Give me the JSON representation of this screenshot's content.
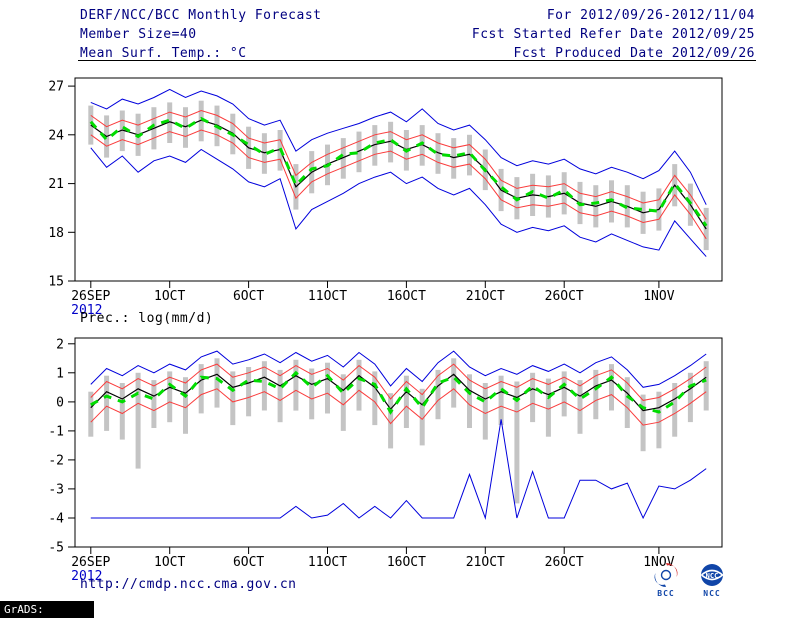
{
  "header": {
    "left_lines": [
      "DERF/NCC/BCC Monthly Forecast",
      "Member Size=40",
      "Mean Surf. Temp.: °C"
    ],
    "right_lines": [
      "For 2012/09/26-2012/11/04",
      "Fcst Started Refer Date 2012/09/25",
      "Fcst Produced Date 2012/09/26"
    ]
  },
  "footer": {
    "url": "http://cmdp.ncc.cma.gov.cn",
    "grads_credit": "GrADS: COLA/IGES",
    "logos": [
      {
        "name": "bcc-logo",
        "label": "BCC",
        "colors": [
          "#d22e2e",
          "#1045a8"
        ]
      },
      {
        "name": "ncc-logo",
        "label": "NCC",
        "colors": [
          "#1045a8",
          "#ffffff"
        ]
      }
    ]
  },
  "colors": {
    "header_text": "#000080",
    "axis_text": "#000000",
    "year_text": "#0000c8",
    "envelope": "#0000dc",
    "quartile": "#fa3c3c",
    "mean": "#000000",
    "median": "#00dc00",
    "spread_bar": "#c4c4c4"
  },
  "chart_data": [
    {
      "type": "line",
      "title": "Mean Surf. Temp.: °C",
      "ylabel": "",
      "xlabel": "",
      "grid": false,
      "legend": "none",
      "ylim": [
        15,
        27.5
      ],
      "yticks": [
        15,
        18,
        21,
        24,
        27
      ],
      "x_ticks": [
        {
          "day": 0,
          "label": "26SEP",
          "year": "2012"
        },
        {
          "day": 5,
          "label": "1OCT"
        },
        {
          "day": 10,
          "label": "6OCT"
        },
        {
          "day": 15,
          "label": "11OCT"
        },
        {
          "day": 20,
          "label": "16OCT"
        },
        {
          "day": 25,
          "label": "21OCT"
        },
        {
          "day": 30,
          "label": "26OCT"
        },
        {
          "day": 36,
          "label": "1NOV"
        }
      ],
      "bars": {
        "name": "ensemble-spread",
        "color": "#c4c4c4",
        "high": [
          25.8,
          25.2,
          25.5,
          25.3,
          25.7,
          26.0,
          25.7,
          26.1,
          25.8,
          25.3,
          24.5,
          24.1,
          24.3,
          22.2,
          23.0,
          23.4,
          23.8,
          24.2,
          24.6,
          24.8,
          24.3,
          24.6,
          24.1,
          23.8,
          24.0,
          23.1,
          21.9,
          21.4,
          21.6,
          21.5,
          21.7,
          21.1,
          20.9,
          21.2,
          20.9,
          20.5,
          20.7,
          22.2,
          21.0,
          19.5
        ],
        "low": [
          23.4,
          22.6,
          23.0,
          22.7,
          23.1,
          23.5,
          23.2,
          23.6,
          23.3,
          22.8,
          21.9,
          21.6,
          21.8,
          19.4,
          20.4,
          20.9,
          21.3,
          21.7,
          22.1,
          22.3,
          21.8,
          22.1,
          21.6,
          21.3,
          21.5,
          20.6,
          19.3,
          18.8,
          19.0,
          18.9,
          19.1,
          18.5,
          18.3,
          18.6,
          18.3,
          17.9,
          18.1,
          19.6,
          18.4,
          16.9
        ]
      },
      "series": [
        {
          "name": "upper-envelope",
          "color": "#0000dc",
          "width": 1,
          "values": [
            26.0,
            25.6,
            26.2,
            25.9,
            26.3,
            26.8,
            26.3,
            26.7,
            26.4,
            25.9,
            25.0,
            24.6,
            24.9,
            23.0,
            23.7,
            24.1,
            24.4,
            24.7,
            25.1,
            25.4,
            24.8,
            25.6,
            24.7,
            24.3,
            24.6,
            23.7,
            22.6,
            22.1,
            22.4,
            22.2,
            22.5,
            21.9,
            21.6,
            22.0,
            21.7,
            21.3,
            21.8,
            23.0,
            21.7,
            19.7
          ]
        },
        {
          "name": "lower-envelope",
          "color": "#0000dc",
          "width": 1,
          "values": [
            23.2,
            22.0,
            22.7,
            21.7,
            22.4,
            22.7,
            22.3,
            23.1,
            22.5,
            21.9,
            21.1,
            20.8,
            21.3,
            18.2,
            19.4,
            19.9,
            20.4,
            21.0,
            21.4,
            21.7,
            21.0,
            21.4,
            20.7,
            20.3,
            20.7,
            19.7,
            18.5,
            18.0,
            18.3,
            18.1,
            18.4,
            17.7,
            17.4,
            17.9,
            17.5,
            17.1,
            16.9,
            18.7,
            17.6,
            16.5
          ]
        },
        {
          "name": "upper-quartile",
          "color": "#fa3c3c",
          "width": 1,
          "values": [
            25.2,
            24.5,
            24.9,
            24.6,
            25.0,
            25.4,
            25.1,
            25.5,
            25.2,
            24.7,
            23.8,
            23.5,
            23.7,
            21.5,
            22.3,
            22.8,
            23.2,
            23.6,
            24.0,
            24.2,
            23.7,
            24.0,
            23.5,
            23.2,
            23.4,
            22.5,
            21.2,
            20.7,
            20.9,
            20.8,
            21.0,
            20.4,
            20.2,
            20.5,
            20.2,
            19.8,
            20.0,
            21.5,
            20.3,
            18.8
          ]
        },
        {
          "name": "lower-quartile",
          "color": "#fa3c3c",
          "width": 1,
          "values": [
            24.0,
            23.3,
            23.7,
            23.4,
            23.8,
            24.2,
            23.9,
            24.3,
            24.0,
            23.5,
            22.6,
            22.3,
            22.5,
            20.1,
            21.1,
            21.6,
            22.0,
            22.4,
            22.8,
            23.0,
            22.5,
            22.8,
            22.3,
            22.0,
            22.2,
            21.3,
            20.0,
            19.5,
            19.7,
            19.6,
            19.8,
            19.2,
            19.0,
            19.3,
            19.0,
            18.6,
            18.8,
            20.3,
            19.1,
            17.6
          ]
        },
        {
          "name": "ensemble-mean",
          "color": "#000000",
          "width": 1.2,
          "values": [
            24.6,
            23.9,
            24.3,
            24.0,
            24.4,
            24.8,
            24.5,
            24.9,
            24.6,
            24.1,
            23.2,
            22.9,
            23.1,
            20.8,
            21.7,
            22.2,
            22.6,
            23.0,
            23.4,
            23.6,
            23.1,
            23.4,
            22.9,
            22.6,
            22.8,
            21.9,
            20.6,
            20.1,
            20.3,
            20.2,
            20.4,
            19.8,
            19.6,
            19.9,
            19.6,
            19.2,
            19.4,
            20.9,
            19.7,
            18.2
          ]
        },
        {
          "name": "median",
          "color": "#00dc00",
          "width": 3,
          "dash": "8,7",
          "values": [
            24.8,
            23.7,
            24.5,
            23.9,
            24.6,
            24.9,
            24.4,
            25.0,
            24.5,
            24.0,
            23.4,
            22.8,
            23.2,
            20.9,
            21.9,
            22.1,
            22.8,
            22.9,
            23.5,
            23.7,
            23.0,
            23.5,
            22.8,
            22.7,
            22.9,
            21.8,
            20.8,
            20.0,
            20.5,
            20.1,
            20.6,
            19.7,
            19.8,
            20.0,
            19.5,
            19.4,
            19.3,
            21.0,
            19.8,
            18.4
          ]
        }
      ]
    },
    {
      "type": "line",
      "title": "Prec.: log(mm/d)",
      "ylabel": "",
      "xlabel": "",
      "grid": false,
      "legend": "none",
      "ylim": [
        -5,
        2.2
      ],
      "yticks": [
        -5,
        -4,
        -3,
        -2,
        -1,
        0,
        1,
        2
      ],
      "x_ticks": [
        {
          "day": 0,
          "label": "26SEP",
          "year": "2012"
        },
        {
          "day": 5,
          "label": "1OCT"
        },
        {
          "day": 10,
          "label": "6OCT"
        },
        {
          "day": 15,
          "label": "11OCT"
        },
        {
          "day": 20,
          "label": "16OCT"
        },
        {
          "day": 25,
          "label": "21OCT"
        },
        {
          "day": 30,
          "label": "26OCT"
        },
        {
          "day": 36,
          "label": "1NOV"
        }
      ],
      "bars": {
        "name": "ensemble-spread",
        "color": "#c4c4c4",
        "high": [
          0.35,
          0.9,
          0.65,
          1.0,
          0.75,
          1.05,
          0.85,
          1.3,
          1.5,
          1.05,
          1.2,
          1.4,
          1.1,
          1.45,
          1.15,
          1.35,
          0.95,
          1.45,
          1.05,
          0.3,
          0.9,
          0.45,
          1.1,
          1.5,
          0.95,
          0.65,
          0.9,
          0.7,
          1.0,
          0.8,
          1.05,
          0.75,
          1.1,
          1.3,
          0.85,
          0.25,
          0.35,
          0.65,
          1.0,
          1.4
        ],
        "low": [
          -1.2,
          -1.0,
          -1.3,
          -2.3,
          -0.9,
          -0.7,
          -1.1,
          -0.4,
          -0.2,
          -0.8,
          -0.5,
          -0.3,
          -0.7,
          -0.3,
          -0.6,
          -0.4,
          -1.0,
          -0.3,
          -0.8,
          -1.6,
          -0.9,
          -1.5,
          -0.6,
          -0.2,
          -0.9,
          -1.3,
          -0.8,
          -3.5,
          -0.7,
          -1.2,
          -0.5,
          -1.1,
          -0.6,
          -0.3,
          -0.9,
          -1.7,
          -1.6,
          -1.2,
          -0.7,
          -0.3
        ]
      },
      "series": [
        {
          "name": "upper-envelope",
          "color": "#0000dc",
          "width": 1,
          "values": [
            0.6,
            1.15,
            0.9,
            1.25,
            1.0,
            1.3,
            1.1,
            1.55,
            1.75,
            1.3,
            1.45,
            1.65,
            1.35,
            1.7,
            1.4,
            1.6,
            1.2,
            1.7,
            1.3,
            0.55,
            1.15,
            0.7,
            1.35,
            1.75,
            1.2,
            0.9,
            1.15,
            0.95,
            1.25,
            1.05,
            1.3,
            1.0,
            1.35,
            1.55,
            1.1,
            0.5,
            0.6,
            0.9,
            1.25,
            1.65
          ]
        },
        {
          "name": "lower-envelope",
          "color": "#0000dc",
          "width": 1,
          "values": [
            -4,
            -4,
            -4,
            -4,
            -4,
            -4,
            -4,
            -4,
            -4,
            -4,
            -4,
            -4,
            -4,
            -3.6,
            -4,
            -3.9,
            -3.5,
            -4,
            -3.6,
            -4,
            -3.4,
            -4,
            -4,
            -4,
            -2.5,
            -4,
            -0.6,
            -4,
            -2.4,
            -4,
            -4,
            -2.7,
            -2.7,
            -3.0,
            -2.8,
            -4,
            -2.9,
            -3.0,
            -2.7,
            -2.3
          ]
        },
        {
          "name": "upper-quartile",
          "color": "#fa3c3c",
          "width": 1,
          "values": [
            0.15,
            0.7,
            0.45,
            0.8,
            0.55,
            0.85,
            0.65,
            1.1,
            1.3,
            0.85,
            1.0,
            1.2,
            0.9,
            1.25,
            0.95,
            1.15,
            0.75,
            1.25,
            0.85,
            0.1,
            0.7,
            0.25,
            0.9,
            1.3,
            0.75,
            0.45,
            0.7,
            0.5,
            0.8,
            0.6,
            0.85,
            0.55,
            0.9,
            1.1,
            0.65,
            0.05,
            0.15,
            0.45,
            0.8,
            1.2
          ]
        },
        {
          "name": "lower-quartile",
          "color": "#fa3c3c",
          "width": 1,
          "values": [
            -0.7,
            -0.15,
            -0.4,
            -0.05,
            -0.3,
            0.0,
            -0.2,
            0.25,
            0.45,
            0.0,
            0.15,
            0.35,
            0.05,
            0.4,
            0.1,
            0.3,
            -0.1,
            0.4,
            0.0,
            -0.75,
            -0.15,
            -0.6,
            0.05,
            0.45,
            -0.1,
            -0.4,
            -0.15,
            -0.35,
            -0.05,
            -0.25,
            0.0,
            -0.3,
            0.05,
            0.25,
            -0.2,
            -0.8,
            -0.7,
            -0.4,
            -0.05,
            0.35
          ]
        },
        {
          "name": "ensemble-mean",
          "color": "#000000",
          "width": 1.2,
          "values": [
            -0.2,
            0.35,
            0.1,
            0.45,
            0.2,
            0.5,
            0.3,
            0.75,
            0.95,
            0.5,
            0.65,
            0.85,
            0.55,
            0.9,
            0.6,
            0.8,
            0.4,
            0.9,
            0.5,
            -0.25,
            0.35,
            -0.1,
            0.55,
            0.95,
            0.4,
            0.1,
            0.35,
            0.15,
            0.45,
            0.25,
            0.5,
            0.2,
            0.55,
            0.75,
            0.3,
            -0.3,
            -0.2,
            0.1,
            0.45,
            0.85
          ]
        },
        {
          "name": "median",
          "color": "#00dc00",
          "width": 3,
          "dash": "8,7",
          "values": [
            -0.1,
            0.2,
            0.0,
            0.3,
            0.1,
            0.6,
            0.2,
            0.85,
            0.8,
            0.4,
            0.75,
            0.7,
            0.45,
            1.0,
            0.5,
            0.9,
            0.3,
            0.8,
            0.6,
            -0.35,
            0.45,
            -0.2,
            0.65,
            0.85,
            0.3,
            0.0,
            0.45,
            0.05,
            0.55,
            0.15,
            0.6,
            0.1,
            0.45,
            0.85,
            0.2,
            -0.2,
            -0.35,
            0.0,
            0.55,
            0.75
          ]
        }
      ]
    }
  ]
}
